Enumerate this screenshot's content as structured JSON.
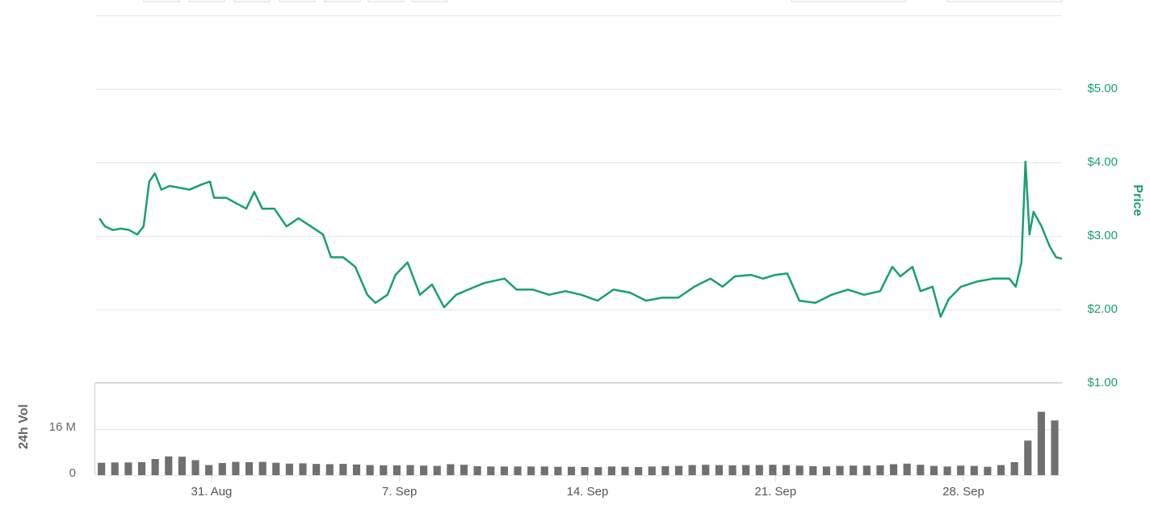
{
  "chart_data": [
    {
      "type": "line",
      "y_label": "Price",
      "color": "#18a06f",
      "grid": true,
      "xlim": [
        26.67,
        62.67
      ],
      "ylim": [
        1,
        6
      ],
      "yticks": [
        {
          "value": 1,
          "label": "$1.00"
        },
        {
          "value": 2,
          "label": "$2.00"
        },
        {
          "value": 3,
          "label": "$3.00"
        },
        {
          "value": 4,
          "label": "$4.00"
        },
        {
          "value": 5,
          "label": "$5.00"
        }
      ],
      "x": [
        26.82,
        27.03,
        27.33,
        27.63,
        27.93,
        28.23,
        28.47,
        28.68,
        28.89,
        29.13,
        29.43,
        29.73,
        30.18,
        30.63,
        30.94,
        31.09,
        31.54,
        31.84,
        32.29,
        32.59,
        32.89,
        33.34,
        33.79,
        34.24,
        34.7,
        35.15,
        35.45,
        35.9,
        36.35,
        36.8,
        37.1,
        37.55,
        37.85,
        38.3,
        38.76,
        39.21,
        39.66,
        40.11,
        40.56,
        41.16,
        41.91,
        42.36,
        42.97,
        43.57,
        44.17,
        44.77,
        45.37,
        45.97,
        46.58,
        47.18,
        47.78,
        48.38,
        48.98,
        49.58,
        50.03,
        50.49,
        51.09,
        51.54,
        51.99,
        52.44,
        52.89,
        53.49,
        54.09,
        54.7,
        55.3,
        55.9,
        56.35,
        56.65,
        57.1,
        57.4,
        57.85,
        58.15,
        58.45,
        58.91,
        59.51,
        60.11,
        60.71,
        60.95,
        61.16,
        61.31,
        61.46,
        61.61,
        61.91,
        62.21,
        62.45,
        62.67
      ],
      "values": [
        3.24,
        3.13,
        3.08,
        3.1,
        3.08,
        3.02,
        3.13,
        3.74,
        3.85,
        3.63,
        3.68,
        3.66,
        3.63,
        3.7,
        3.74,
        3.52,
        3.52,
        3.46,
        3.37,
        3.6,
        3.37,
        3.37,
        3.13,
        3.24,
        3.13,
        3.02,
        2.71,
        2.71,
        2.58,
        2.2,
        2.09,
        2.2,
        2.47,
        2.64,
        2.2,
        2.34,
        2.03,
        2.2,
        2.27,
        2.36,
        2.42,
        2.27,
        2.27,
        2.2,
        2.25,
        2.2,
        2.12,
        2.27,
        2.23,
        2.12,
        2.16,
        2.16,
        2.31,
        2.42,
        2.31,
        2.45,
        2.47,
        2.42,
        2.47,
        2.49,
        2.12,
        2.09,
        2.2,
        2.27,
        2.2,
        2.25,
        2.58,
        2.45,
        2.58,
        2.25,
        2.31,
        1.9,
        2.14,
        2.31,
        2.38,
        2.42,
        2.42,
        2.31,
        2.64,
        4.01,
        3.02,
        3.33,
        3.13,
        2.86,
        2.71,
        2.69
      ]
    },
    {
      "type": "bar",
      "y_label": "24h Vol",
      "color": "#707070",
      "grid": true,
      "xlim": [
        26.67,
        62.67
      ],
      "ylim": [
        0,
        32000000
      ],
      "yticks": [
        0,
        {
          "value": 16000000,
          "label": "16 M"
        }
      ],
      "xticks": [
        {
          "value": 31,
          "label": "31. Aug"
        },
        {
          "value": 38,
          "label": "7. Sep"
        },
        {
          "value": 45,
          "label": "14. Sep"
        },
        {
          "value": 52,
          "label": "21. Sep"
        },
        {
          "value": 59,
          "label": "28. Sep"
        }
      ],
      "x": [
        26.9,
        27.4,
        27.9,
        28.4,
        28.9,
        29.4,
        29.9,
        30.4,
        30.9,
        31.4,
        31.9,
        32.4,
        32.9,
        33.4,
        33.9,
        34.4,
        34.9,
        35.4,
        35.9,
        36.4,
        36.9,
        37.4,
        37.9,
        38.4,
        38.9,
        39.4,
        39.9,
        40.4,
        40.9,
        41.4,
        41.9,
        42.4,
        42.9,
        43.4,
        43.9,
        44.4,
        44.9,
        45.4,
        45.9,
        46.4,
        46.9,
        47.4,
        47.9,
        48.4,
        48.9,
        49.4,
        49.9,
        50.4,
        50.9,
        51.4,
        51.9,
        52.4,
        52.9,
        53.4,
        53.9,
        54.4,
        54.9,
        55.4,
        55.9,
        56.4,
        56.9,
        57.4,
        57.9,
        58.4,
        58.9,
        59.4,
        59.9,
        60.4,
        60.9,
        61.4,
        61.9,
        62.4
      ],
      "values": [
        4300000,
        4400000,
        4400000,
        4500000,
        5600000,
        6500000,
        6400000,
        5200000,
        3500000,
        4200000,
        4600000,
        4500000,
        4600000,
        4300000,
        4000000,
        4100000,
        3900000,
        3800000,
        3900000,
        3700000,
        3500000,
        3400000,
        3400000,
        3500000,
        3300000,
        3200000,
        3800000,
        3600000,
        3100000,
        3000000,
        3000000,
        3000000,
        3000000,
        3000000,
        2900000,
        2900000,
        2800000,
        2800000,
        3000000,
        2900000,
        2800000,
        3000000,
        3100000,
        3200000,
        3500000,
        3600000,
        3500000,
        3400000,
        3500000,
        3500000,
        3600000,
        3500000,
        3300000,
        3100000,
        3000000,
        3200000,
        3300000,
        3300000,
        3400000,
        3800000,
        4000000,
        3600000,
        3200000,
        3000000,
        3300000,
        3200000,
        2900000,
        3500000,
        4500000,
        12000000,
        22000000,
        19000000
      ]
    }
  ]
}
